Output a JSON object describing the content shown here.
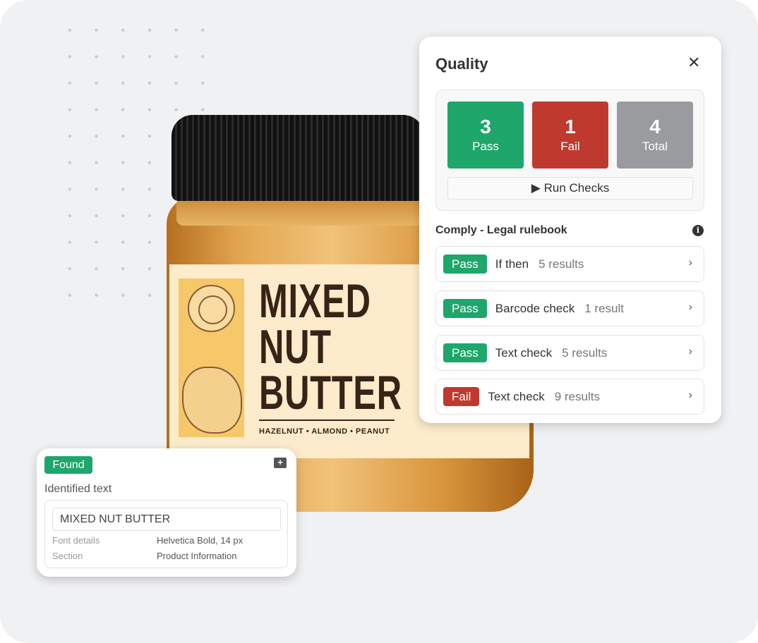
{
  "product": {
    "title_lines": [
      "MIXED",
      "NUT",
      "BUTTER"
    ],
    "subtitle": "HAZELNUT • ALMOND • PEANUT"
  },
  "quality": {
    "title": "Quality",
    "close_icon": "close-icon",
    "summary": {
      "pass": {
        "count": "3",
        "label": "Pass",
        "color": "#1ea66b"
      },
      "fail": {
        "count": "1",
        "label": "Fail",
        "color": "#c0392f"
      },
      "total": {
        "count": "4",
        "label": "Total",
        "color": "#9a9b9f"
      }
    },
    "run_checks": "▶ Run Checks",
    "section_title": "Comply - Legal rulebook",
    "rules": [
      {
        "status": "Pass",
        "name": "If then",
        "count": "5 results"
      },
      {
        "status": "Pass",
        "name": "Barcode check",
        "count": "1 result"
      },
      {
        "status": "Pass",
        "name": "Text check",
        "count": "5 results"
      },
      {
        "status": "Fail",
        "name": "Text check",
        "count": "9 results"
      }
    ]
  },
  "found_card": {
    "badge": "Found",
    "heading": "Identified text",
    "text_value": "MIXED NUT BUTTER",
    "font_label": "Font details",
    "font_value": "Helvetica Bold, 14 px",
    "section_label": "Section",
    "section_value": "Product Information"
  }
}
